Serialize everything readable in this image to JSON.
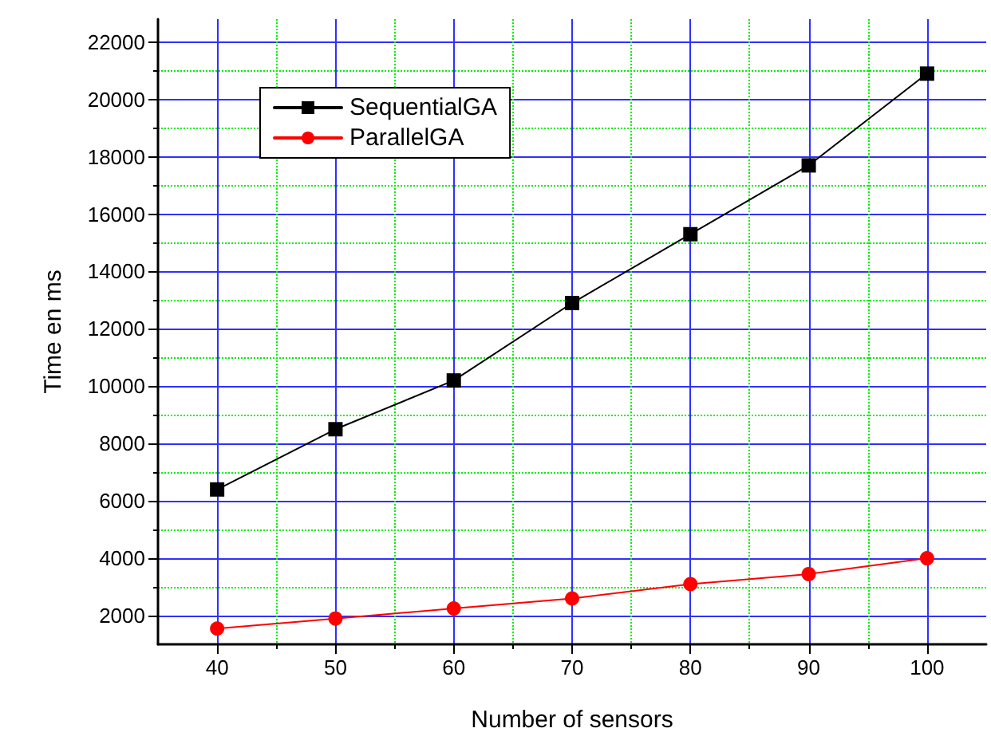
{
  "chart_data": {
    "type": "line",
    "xlabel": "Number of sensors",
    "ylabel": "Time en ms",
    "x": [
      40,
      50,
      60,
      70,
      80,
      90,
      100
    ],
    "series": [
      {
        "name": "SequentialGA",
        "color": "#000000",
        "marker": "square",
        "values": [
          6400,
          8500,
          10200,
          12900,
          15300,
          17700,
          20900
        ]
      },
      {
        "name": "ParallelGA",
        "color": "#ff0000",
        "marker": "circle",
        "values": [
          1550,
          1900,
          2250,
          2600,
          3100,
          3450,
          4000
        ]
      }
    ],
    "xlim": [
      35,
      105
    ],
    "xticks": [
      40,
      {
        "value": 45,
        "label": null
      },
      50,
      {
        "value": 55,
        "label": null
      },
      60,
      {
        "value": 65,
        "label": null
      },
      70,
      {
        "value": 75,
        "label": null
      },
      80,
      {
        "value": 85,
        "label": null
      },
      90,
      {
        "value": 95,
        "label": null
      },
      100
    ],
    "ylim": [
      1000,
      22800
    ],
    "yticks": [
      2000,
      {
        "value": 3000,
        "label": null
      },
      4000,
      {
        "value": 5000,
        "label": null
      },
      6000,
      {
        "value": 7000,
        "label": null
      },
      8000,
      {
        "value": 9000,
        "label": null
      },
      10000,
      {
        "value": 11000,
        "label": null
      },
      12000,
      {
        "value": 13000,
        "label": null
      },
      14000,
      {
        "value": 15000,
        "label": null
      },
      16000,
      {
        "value": 17000,
        "label": null
      },
      18000,
      {
        "value": 19000,
        "label": null
      },
      20000,
      {
        "value": 21000,
        "label": null
      },
      22000
    ],
    "grid": true,
    "legend": "top left",
    "line_style": "solid"
  }
}
